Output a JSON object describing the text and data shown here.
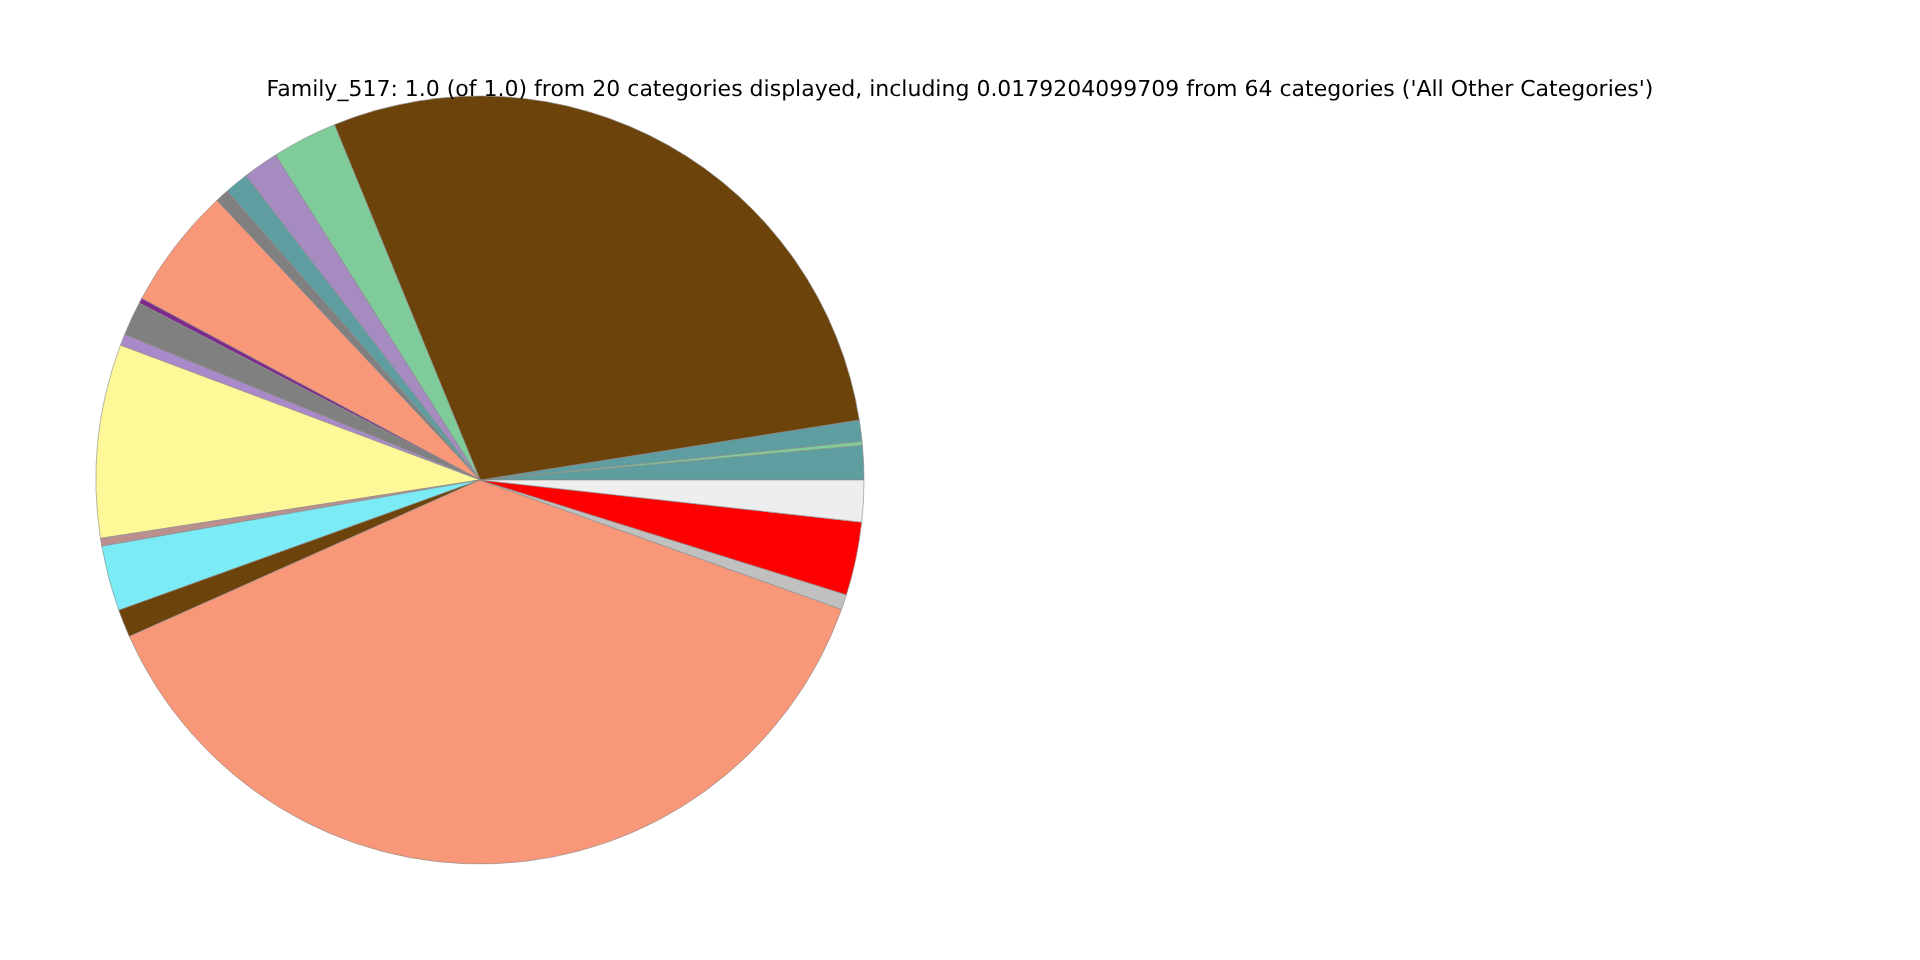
{
  "chart_data": {
    "type": "pie",
    "title": "Family_517: 1.0 (of 1.0) from 20 categories displayed, including 0.0179204099709 from 64 categories ('All Other Categories')",
    "categories": [
      null,
      null,
      null,
      null,
      null,
      null,
      null,
      null,
      null,
      null,
      null,
      null,
      null,
      null,
      null,
      null,
      null,
      null,
      null,
      null
    ],
    "values": [
      1.44,
      0.17,
      0.89,
      28.69,
      2.75,
      1.5,
      1.0,
      0.58,
      5.14,
      0.22,
      1.44,
      0.47,
      8.14,
      0.33,
      2.75,
      1.17,
      37.85,
      0.64,
      3.08,
      1.75
    ],
    "colors": [
      "#5f9ea0",
      "#7fcc99",
      "#5f9ea0",
      "#6b430b",
      "#80cb9a",
      "#a68bc1",
      "#5f9ea0",
      "#808080",
      "#f89878",
      "#7d2a8c",
      "#808080",
      "#a989c9",
      "#fff899",
      "#bc8f8f",
      "#7bebf5",
      "#6b430b",
      "#f89878",
      "#c0c0c0",
      "#ff0000",
      "#eeeeee"
    ]
  }
}
